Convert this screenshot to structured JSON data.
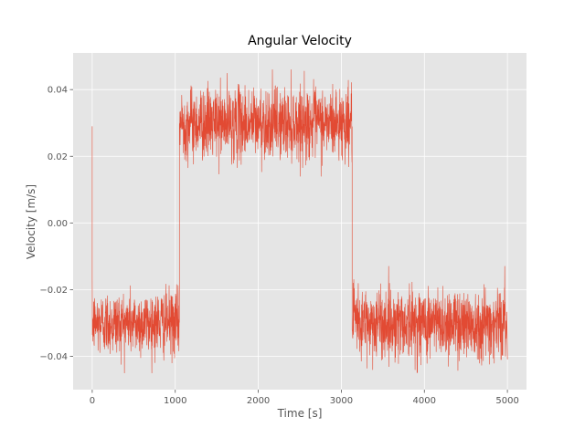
{
  "chart_data": {
    "type": "line",
    "title": "Angular Velocity",
    "xlabel": "Time [s]",
    "ylabel": "Velocity [m/s]",
    "xlim": [
      -230,
      5230
    ],
    "ylim": [
      -0.05,
      0.051
    ],
    "x_ticks": [
      0,
      1000,
      2000,
      3000,
      4000,
      5000
    ],
    "x_tick_labels": [
      "0",
      "1000",
      "2000",
      "3000",
      "4000",
      "5000"
    ],
    "y_ticks": [
      -0.04,
      -0.02,
      0.0,
      0.02,
      0.04
    ],
    "y_tick_labels": [
      "−0.04",
      "−0.02",
      "0.00",
      "0.02",
      "0.04"
    ],
    "grid": true,
    "background_color": "#e5e5e5",
    "grid_color": "#ffffff",
    "series": [
      {
        "color": "#e24a33",
        "segments": [
          {
            "x_start": 0,
            "x_end": 1050,
            "mean": -0.03,
            "noise_low": -0.045,
            "noise_high": -0.016
          },
          {
            "x_start": 1050,
            "x_end": 3130,
            "mean": 0.03,
            "noise_low": 0.014,
            "noise_high": 0.046
          },
          {
            "x_start": 3130,
            "x_end": 5000,
            "mean": -0.03,
            "noise_low": -0.045,
            "noise_high": -0.013
          }
        ],
        "initial_spike": {
          "x": 0,
          "y": 0.029
        }
      }
    ]
  }
}
